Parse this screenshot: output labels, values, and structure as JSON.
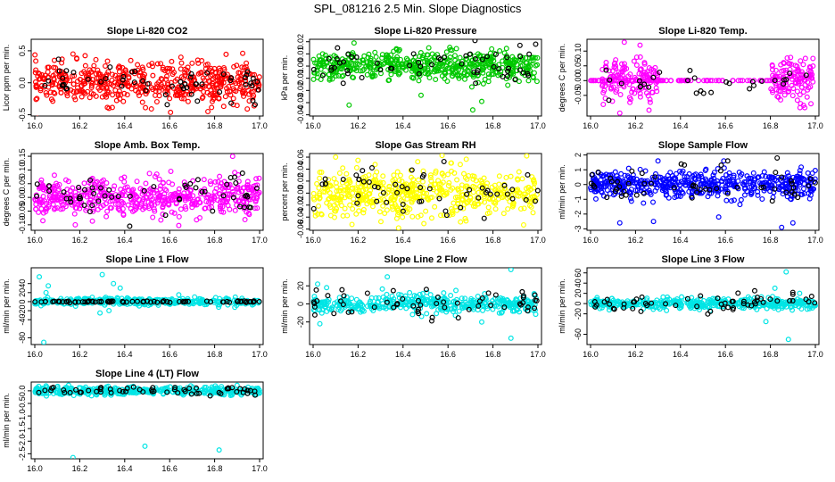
{
  "figure": {
    "title": "SPL_081216  2.5 Min. Slope Diagnostics"
  },
  "chart_data": [
    {
      "type": "scatter",
      "title": "Slope Li-820 CO2",
      "ylabel": "Licor ppm per min.",
      "xlim": [
        16.0,
        17.0
      ],
      "ylim": [
        -0.52,
        0.68
      ],
      "xticks": [
        16.0,
        16.2,
        16.4,
        16.6,
        16.8,
        17.0
      ],
      "xtick_labels": [
        "16.0",
        "16.2",
        "16.4",
        "16.6",
        "16.8",
        "17.0"
      ],
      "yticks": [
        -0.5,
        0.0,
        0.5
      ],
      "ytick_labels": [
        "-0.5",
        "0.0",
        "0.5"
      ],
      "series": [
        {
          "color": "#ff0000",
          "n": 520,
          "spread": 0.16,
          "outliers": [
            [
              16.33,
              -0.4
            ],
            [
              16.77,
              -0.45
            ],
            [
              16.17,
              0.45
            ],
            [
              16.65,
              0.4
            ]
          ]
        },
        {
          "color": "#000000",
          "n": 55,
          "spread": 0.12,
          "outliers": [
            [
              16.98,
              -0.34
            ],
            [
              16.97,
              -0.28
            ]
          ]
        }
      ]
    },
    {
      "type": "scatter",
      "title": "Slope Li-820 Pressure",
      "ylabel": "kPa per min.",
      "xlim": [
        16.0,
        17.0
      ],
      "ylim": [
        -0.041,
        0.022
      ],
      "xticks": [
        16.0,
        16.2,
        16.4,
        16.6,
        16.8,
        17.0
      ],
      "xtick_labels": [
        "16.0",
        "16.2",
        "16.4",
        "16.6",
        "16.8",
        "17.0"
      ],
      "yticks": [
        -0.04,
        -0.03,
        -0.02,
        -0.01,
        0.0,
        0.01,
        0.02
      ],
      "ytick_labels": [
        "-0.04",
        "-0.03",
        "-0.02",
        "-0.01",
        "0.00",
        "0.01",
        "0.02"
      ],
      "series": [
        {
          "color": "#00c800",
          "n": 520,
          "spread": 0.006,
          "outliers": [
            [
              16.16,
              -0.032
            ],
            [
              16.71,
              -0.036
            ],
            [
              16.75,
              -0.029
            ],
            [
              16.48,
              -0.024
            ]
          ]
        },
        {
          "color": "#000000",
          "n": 55,
          "spread": 0.007,
          "outliers": [
            [
              16.99,
              0.018
            ],
            [
              16.72,
              0.021
            ],
            [
              16.92,
              0.017
            ]
          ]
        }
      ]
    },
    {
      "type": "scatter",
      "title": "Slope Li-820 Temp.",
      "ylabel": "degrees C per min.",
      "xlim": [
        16.0,
        17.0
      ],
      "ylim": [
        -0.12,
        0.14
      ],
      "xticks": [
        16.0,
        16.2,
        16.4,
        16.6,
        16.8,
        17.0
      ],
      "xtick_labels": [
        "16.0",
        "16.2",
        "16.4",
        "16.6",
        "16.8",
        "17.0"
      ],
      "yticks": [
        -0.05,
        0.0,
        0.05,
        0.1
      ],
      "ytick_labels": [
        "-0.05",
        "0.00",
        "0.05",
        "0.10"
      ],
      "series": [
        {
          "color": "#ff00ff",
          "n": 260,
          "spread": 0.035,
          "outliers": [
            [
              16.15,
              0.13
            ],
            [
              16.22,
              0.12
            ],
            [
              16.13,
              -0.11
            ],
            [
              16.26,
              -0.1
            ]
          ],
          "segments": [
            [
              16.05,
              16.3
            ],
            [
              16.8,
              16.99
            ]
          ]
        },
        {
          "color": "#ff00ff",
          "n": 90,
          "spread": 0.0,
          "outliers": [],
          "segments": [
            [
              16.0,
              16.8
            ]
          ]
        },
        {
          "color": "#000000",
          "n": 30,
          "spread": 0.02,
          "outliers": [],
          "segments": [
            [
              16.05,
              16.99
            ]
          ]
        }
      ]
    },
    {
      "type": "scatter",
      "title": "Slope Amb. Box Temp.",
      "ylabel": "degrees C per min.",
      "xlim": [
        16.0,
        17.0
      ],
      "ylim": [
        -0.12,
        0.16
      ],
      "xticks": [
        16.0,
        16.2,
        16.4,
        16.6,
        16.8,
        17.0
      ],
      "xtick_labels": [
        "16.0",
        "16.2",
        "16.4",
        "16.6",
        "16.8",
        "17.0"
      ],
      "yticks": [
        -0.1,
        -0.05,
        0.0,
        0.05,
        0.1,
        0.15
      ],
      "ytick_labels": [
        "-0.10",
        "-0.05",
        "0.00",
        "0.05",
        "0.10",
        "0.15"
      ],
      "series": [
        {
          "color": "#ff00ff",
          "n": 520,
          "spread": 0.035,
          "outliers": [
            [
              16.88,
              0.15
            ],
            [
              16.18,
              -0.1
            ]
          ]
        },
        {
          "color": "#000000",
          "n": 55,
          "spread": 0.035,
          "outliers": []
        }
      ]
    },
    {
      "type": "scatter",
      "title": "Slope Gas Stream RH",
      "ylabel": "percent per min.",
      "xlim": [
        16.0,
        17.0
      ],
      "ylim": [
        -0.062,
        0.066
      ],
      "xticks": [
        16.0,
        16.2,
        16.4,
        16.6,
        16.8,
        17.0
      ],
      "xtick_labels": [
        "16.0",
        "16.2",
        "16.4",
        "16.6",
        "16.8",
        "17.0"
      ],
      "yticks": [
        -0.06,
        -0.04,
        -0.02,
        0.0,
        0.02,
        0.04,
        0.06
      ],
      "ytick_labels": [
        "-0.06",
        "-0.04",
        "-0.02",
        "0.00",
        "0.02",
        "0.04",
        "0.06"
      ],
      "series": [
        {
          "color": "#ffff00",
          "n": 520,
          "spread": 0.02,
          "outliers": [
            [
              16.1,
              0.06
            ],
            [
              16.38,
              -0.058
            ],
            [
              16.95,
              0.062
            ]
          ]
        },
        {
          "color": "#000000",
          "n": 55,
          "spread": 0.02,
          "outliers": []
        }
      ]
    },
    {
      "type": "scatter",
      "title": "Slope Sample Flow",
      "ylabel": "ml/min per min.",
      "xlim": [
        16.0,
        17.0
      ],
      "ylim": [
        -3.1,
        2.1
      ],
      "xticks": [
        16.0,
        16.2,
        16.4,
        16.6,
        16.8,
        17.0
      ],
      "xtick_labels": [
        "16.0",
        "16.2",
        "16.4",
        "16.6",
        "16.8",
        "17.0"
      ],
      "yticks": [
        -3,
        -2,
        -1,
        0,
        1,
        2
      ],
      "ytick_labels": [
        "-3",
        "-2",
        "-1",
        "0",
        "1",
        "2"
      ],
      "series": [
        {
          "color": "#0000ff",
          "n": 520,
          "spread": 0.45,
          "outliers": [
            [
              16.13,
              -2.6
            ],
            [
              16.28,
              -2.5
            ],
            [
              16.57,
              -2.2
            ],
            [
              16.85,
              -2.9
            ],
            [
              16.9,
              -2.6
            ],
            [
              16.3,
              1.6
            ]
          ]
        },
        {
          "color": "#000000",
          "n": 55,
          "spread": 0.6,
          "outliers": [
            [
              16.83,
              1.8
            ],
            [
              16.61,
              1.6
            ]
          ]
        }
      ]
    },
    {
      "type": "scatter",
      "title": "Slope Line 1 Flow",
      "ylabel": "ml/min per min.",
      "xlim": [
        16.0,
        17.0
      ],
      "ylim": [
        -95,
        75
      ],
      "xticks": [
        16.0,
        16.2,
        16.4,
        16.6,
        16.8,
        17.0
      ],
      "xtick_labels": [
        "16.0",
        "16.2",
        "16.4",
        "16.6",
        "16.8",
        "17.0"
      ],
      "yticks": [
        -80,
        -40,
        -20,
        0,
        20,
        40
      ],
      "ytick_labels": [
        "-80",
        "-40",
        "-20",
        "0",
        "20",
        "40"
      ],
      "series": [
        {
          "color": "#00e5e5",
          "n": 360,
          "spread": 4,
          "outliers": [
            [
              16.02,
              55
            ],
            [
              16.04,
              -90
            ],
            [
              16.06,
              35
            ],
            [
              16.3,
              60
            ],
            [
              16.33,
              -20
            ],
            [
              16.35,
              40
            ],
            [
              16.29,
              -25
            ],
            [
              16.38,
              30
            ],
            [
              16.05,
              20
            ]
          ]
        },
        {
          "color": "#000000",
          "n": 80,
          "spread": 0.8,
          "outliers": []
        }
      ]
    },
    {
      "type": "scatter",
      "title": "Slope Line 2 Flow",
      "ylabel": "ml/min per min.",
      "xlim": [
        16.0,
        17.0
      ],
      "ylim": [
        -45,
        40
      ],
      "xticks": [
        16.0,
        16.2,
        16.4,
        16.6,
        16.8,
        17.0
      ],
      "xtick_labels": [
        "16.0",
        "16.2",
        "16.4",
        "16.6",
        "16.8",
        "17.0"
      ],
      "yticks": [
        -20,
        0,
        20
      ],
      "ytick_labels": [
        "-20",
        "0",
        "20"
      ],
      "series": [
        {
          "color": "#00e5e5",
          "n": 420,
          "spread": 5,
          "outliers": [
            [
              16.02,
              22
            ],
            [
              16.03,
              -22
            ],
            [
              16.06,
              18
            ],
            [
              16.33,
              30
            ],
            [
              16.88,
              38
            ],
            [
              16.88,
              -38
            ],
            [
              16.75,
              -20
            ]
          ]
        },
        {
          "color": "#000000",
          "n": 55,
          "spread": 8,
          "outliers": [
            [
              16.53,
              -15
            ],
            [
              16.78,
              12
            ]
          ]
        }
      ]
    },
    {
      "type": "scatter",
      "title": "Slope Line 3 Flow",
      "ylabel": "ml/min per min.",
      "xlim": [
        16.0,
        17.0
      ],
      "ylim": [
        -80,
        70
      ],
      "xticks": [
        16.0,
        16.2,
        16.4,
        16.6,
        16.8,
        17.0
      ],
      "xtick_labels": [
        "16.0",
        "16.2",
        "16.4",
        "16.6",
        "16.8",
        "17.0"
      ],
      "yticks": [
        -60,
        -20,
        0,
        20,
        40,
        60
      ],
      "ytick_labels": [
        "-60",
        "-20",
        "0",
        "20",
        "40",
        "60"
      ],
      "series": [
        {
          "color": "#00e5e5",
          "n": 420,
          "spread": 5,
          "outliers": [
            [
              16.87,
              62
            ],
            [
              16.88,
              -70
            ],
            [
              16.78,
              -35
            ],
            [
              16.82,
              30
            ],
            [
              16.93,
              20
            ]
          ]
        },
        {
          "color": "#000000",
          "n": 55,
          "spread": 8,
          "outliers": [
            [
              16.73,
              25
            ],
            [
              16.9,
              18
            ]
          ]
        }
      ]
    },
    {
      "type": "scatter",
      "title": "Slope Line 4 (LT) Flow",
      "ylabel": "ml/min per min.",
      "xlim": [
        16.0,
        17.0
      ],
      "ylim": [
        -2.7,
        0.35
      ],
      "xticks": [
        16.0,
        16.2,
        16.4,
        16.6,
        16.8,
        17.0
      ],
      "xtick_labels": [
        "16.0",
        "16.2",
        "16.4",
        "16.6",
        "16.8",
        "17.0"
      ],
      "yticks": [
        -2.5,
        -2.0,
        -1.5,
        -1.0,
        -0.5,
        0.0
      ],
      "ytick_labels": [
        "-2.5",
        "-2.0",
        "-1.5",
        "-1.0",
        "-0.5",
        "0.0"
      ],
      "series": [
        {
          "color": "#00e5e5",
          "n": 420,
          "spread": 0.08,
          "outliers": [
            [
              16.17,
              -2.65
            ],
            [
              16.49,
              -2.2
            ],
            [
              16.82,
              -2.35
            ],
            [
              16.05,
              0.2
            ],
            [
              16.9,
              0.22
            ]
          ]
        },
        {
          "color": "#000000",
          "n": 55,
          "spread": 0.08,
          "outliers": [
            [
              16.78,
              -0.2
            ],
            [
              16.98,
              -0.17
            ]
          ]
        }
      ]
    }
  ]
}
